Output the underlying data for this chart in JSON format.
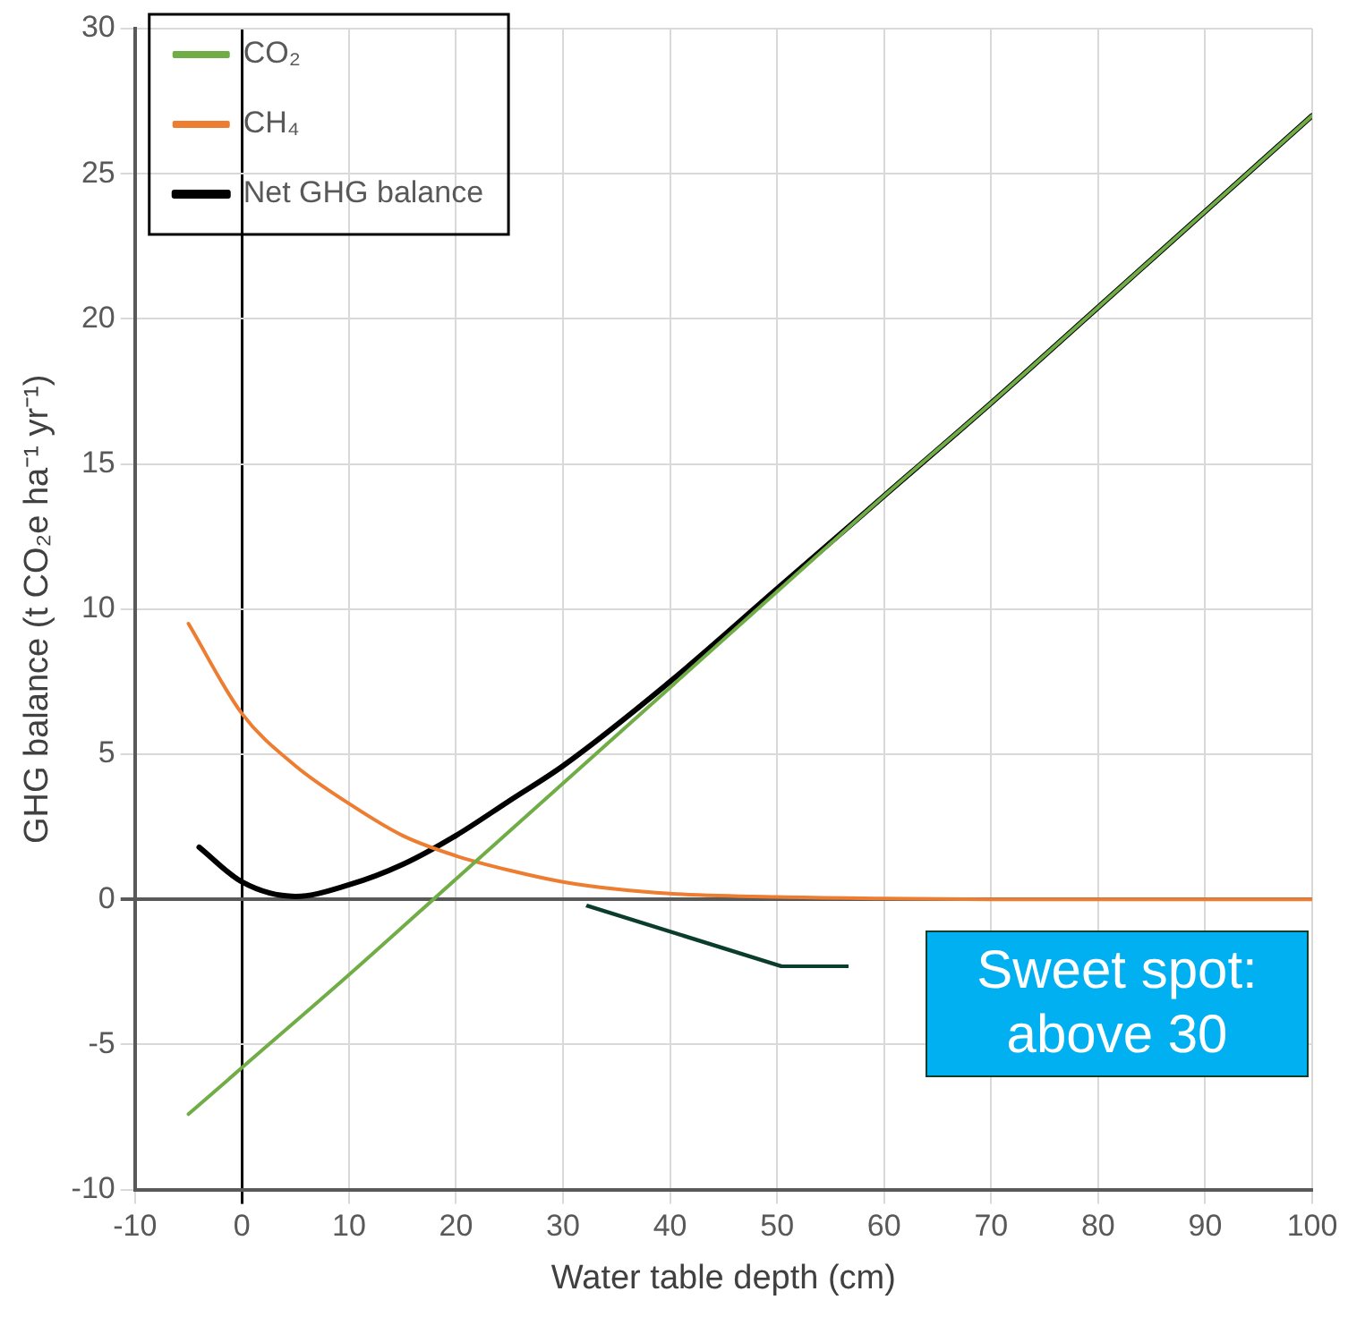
{
  "chart_data": {
    "type": "line",
    "xlabel": "Water table depth (cm)",
    "ylabel": "GHG balance (t CO₂e ha⁻¹ yr⁻¹)",
    "xlim": [
      -10,
      100
    ],
    "xticks": [
      -10,
      0,
      10,
      20,
      30,
      40,
      50,
      60,
      70,
      80,
      90,
      100
    ],
    "ylim": [
      -10,
      30
    ],
    "yticks": [
      -10,
      -5,
      0,
      5,
      10,
      15,
      20,
      25,
      30
    ],
    "grid": true,
    "legend": "top left",
    "marker": "none",
    "line_style": "solid",
    "series": [
      {
        "name": "CO₂",
        "color": "#70ad47",
        "x": [
          -5,
          0,
          10,
          20,
          30,
          40,
          50,
          60,
          70,
          80,
          90,
          100
        ],
        "values": [
          -7.4,
          -5.8,
          -2.6,
          0.7,
          4.0,
          7.3,
          10.6,
          13.9,
          17.1,
          20.4,
          23.7,
          27
        ]
      },
      {
        "name": "CH₄",
        "color": "#ed7d31",
        "x": [
          -5,
          0,
          5,
          10,
          15,
          20,
          25,
          30,
          35,
          40,
          50,
          60,
          70,
          80,
          90,
          100
        ],
        "values": [
          9.5,
          6.4,
          4.6,
          3.3,
          2.2,
          1.5,
          1.0,
          0.6,
          0.35,
          0.2,
          0.08,
          0.03,
          0,
          0,
          0,
          0
        ]
      },
      {
        "name": "Net GHG balance",
        "color": "#000000",
        "x": [
          -4,
          0,
          5,
          10,
          15,
          20,
          25,
          30,
          40,
          50,
          60,
          70,
          80,
          90,
          100
        ],
        "values": [
          1.8,
          0.6,
          0.1,
          0.5,
          1.2,
          2.2,
          3.4,
          4.6,
          7.5,
          10.7,
          13.9,
          17.1,
          20.4,
          23.7,
          27
        ]
      }
    ],
    "annotations": [
      "Sweet spot: above 30"
    ]
  }
}
